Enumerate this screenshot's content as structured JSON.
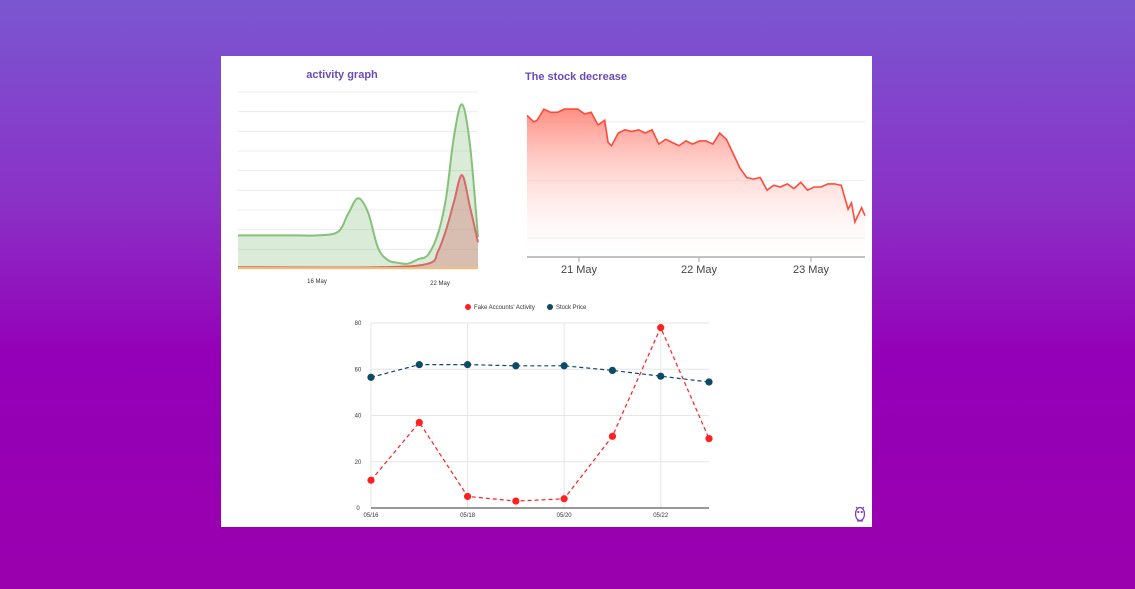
{
  "chart_data": [
    {
      "type": "area",
      "title": "activity  graph",
      "x_tick_labels": [
        "16 May",
        "22 May"
      ],
      "xlim": [
        0,
        12
      ],
      "ylim": [
        0,
        10
      ],
      "grid": true,
      "series": [
        {
          "name": "green",
          "color": "#86c07a",
          "x": [
            0,
            1,
            2,
            3,
            4,
            5,
            5.5,
            6,
            6.5,
            7,
            7.5,
            8,
            8.5,
            9,
            9.5,
            10,
            10.4,
            10.8,
            11.2,
            11.6,
            12
          ],
          "values": [
            1.9,
            1.9,
            1.9,
            1.9,
            1.9,
            2.1,
            3.1,
            4.0,
            3.2,
            1.2,
            0.5,
            0.35,
            0.3,
            0.55,
            0.8,
            2.0,
            4.0,
            7.5,
            9.3,
            7.0,
            1.8
          ]
        },
        {
          "name": "red",
          "color": "#d46a6a",
          "x": [
            0,
            7,
            9.5,
            10,
            10.4,
            10.8,
            11.2,
            11.6,
            12
          ],
          "values": [
            0.1,
            0.1,
            0.3,
            1.0,
            2.2,
            3.8,
            5.3,
            3.5,
            1.5
          ]
        },
        {
          "name": "orange",
          "color": "#f0c07a",
          "x": [
            0,
            12
          ],
          "values": [
            0.05,
            0.05
          ]
        }
      ]
    },
    {
      "type": "area",
      "title": "The stock decrease",
      "x_tick_labels": [
        "21 May",
        "22 May",
        "23 May"
      ],
      "xlim": [
        0,
        100
      ],
      "ylim": [
        0,
        10
      ],
      "grid": true,
      "color": "#ff4a3a",
      "x": [
        0,
        2,
        3,
        5,
        7,
        9,
        11,
        13,
        15,
        17,
        19,
        21,
        23,
        24,
        25,
        27,
        29,
        31,
        33,
        35,
        37,
        39,
        41,
        43,
        45,
        47,
        49,
        51,
        53,
        55,
        57,
        59,
        61,
        63,
        65,
        67,
        69,
        71,
        73,
        75,
        77,
        79,
        81,
        83,
        85,
        87,
        89,
        91,
        93,
        95,
        96,
        97,
        99,
        100
      ],
      "values": [
        8.9,
        8.5,
        8.6,
        9.3,
        9.1,
        9.1,
        9.3,
        9.3,
        9.3,
        9.0,
        9.1,
        8.3,
        8.6,
        7.2,
        7.0,
        7.8,
        8.0,
        7.9,
        8.0,
        7.8,
        8.0,
        7.1,
        7.4,
        7.2,
        7.0,
        7.3,
        7.1,
        7.3,
        7.3,
        7.1,
        7.8,
        7.4,
        6.5,
        5.6,
        5.0,
        4.9,
        5.0,
        4.2,
        4.5,
        4.4,
        4.6,
        4.3,
        4.7,
        4.2,
        4.4,
        4.4,
        4.6,
        4.6,
        4.5,
        3.0,
        3.4,
        2.2,
        3.1,
        2.6
      ]
    },
    {
      "type": "line",
      "style": "dashed-with-markers",
      "categories": [
        "05/16",
        "05/17",
        "05/18",
        "05/19",
        "05/20",
        "05/21",
        "05/22",
        "05/23"
      ],
      "x_tick_labels": [
        "05/16",
        "05/18",
        "05/20",
        "05/22"
      ],
      "ylim": [
        0,
        80
      ],
      "yticks": [
        0,
        20,
        40,
        60,
        80
      ],
      "legend_position": "top",
      "grid": true,
      "series": [
        {
          "name": "Fake Accounts' Activity",
          "color": "#ff2020",
          "values": [
            12,
            37,
            5,
            3,
            4,
            31,
            78,
            30
          ]
        },
        {
          "name": "Stock Price",
          "color": "#0d4a66",
          "values": [
            56.5,
            62,
            62,
            61.5,
            61.5,
            59.5,
            57,
            54.5
          ]
        }
      ]
    }
  ]
}
